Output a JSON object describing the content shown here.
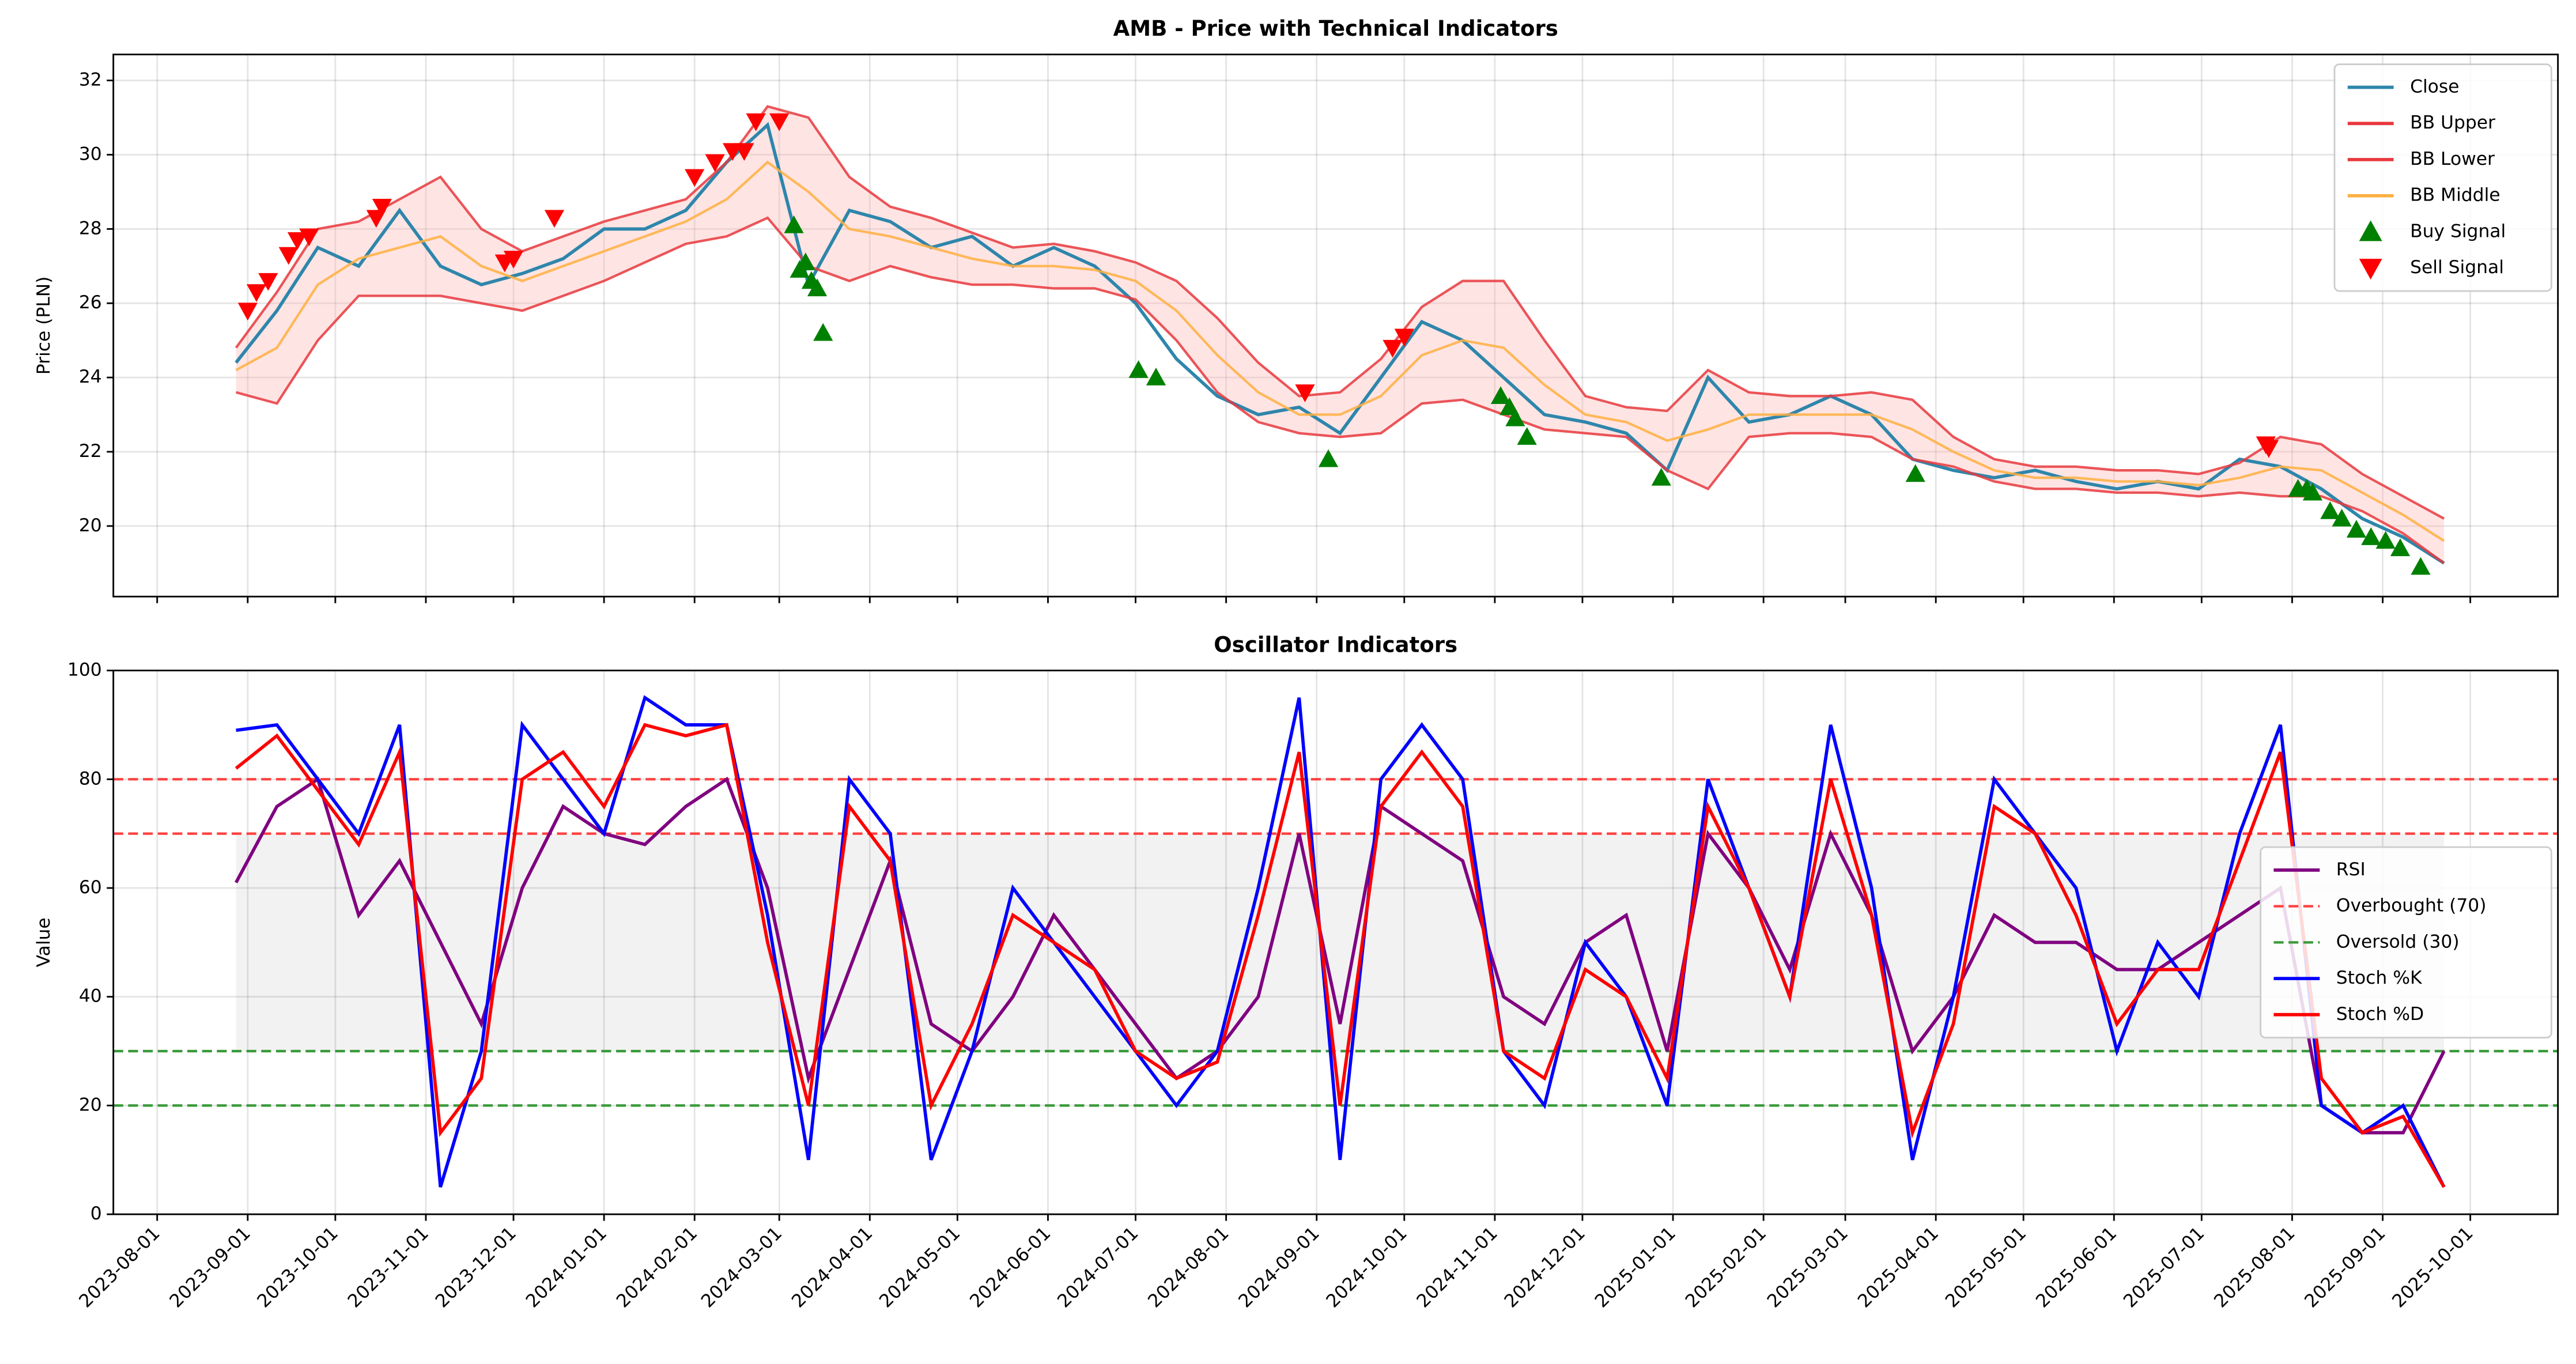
{
  "chart_data": [
    {
      "type": "line",
      "title": "AMB - Price with Technical Indicators",
      "ylabel": "Price (PLN)",
      "x": [
        "2023-08-28",
        "2023-09-11",
        "2023-09-25",
        "2023-10-09",
        "2023-10-23",
        "2023-11-06",
        "2023-11-20",
        "2023-12-04",
        "2023-12-18",
        "2024-01-01",
        "2024-01-15",
        "2024-01-29",
        "2024-02-12",
        "2024-02-26",
        "2024-03-11",
        "2024-03-25",
        "2024-04-08",
        "2024-04-22",
        "2024-05-06",
        "2024-05-20",
        "2024-06-03",
        "2024-06-17",
        "2024-07-01",
        "2024-07-15",
        "2024-07-29",
        "2024-08-12",
        "2024-08-26",
        "2024-09-09",
        "2024-09-23",
        "2024-10-07",
        "2024-10-21",
        "2024-11-04",
        "2024-11-18",
        "2024-12-02",
        "2024-12-16",
        "2024-12-30",
        "2025-01-13",
        "2025-01-27",
        "2025-02-10",
        "2025-02-24",
        "2025-03-10",
        "2025-03-24",
        "2025-04-07",
        "2025-04-21",
        "2025-05-05",
        "2025-05-19",
        "2025-06-02",
        "2025-06-16",
        "2025-06-30",
        "2025-07-14",
        "2025-07-28",
        "2025-08-11",
        "2025-08-25",
        "2025-09-08",
        "2025-09-22"
      ],
      "series": [
        {
          "name": "Close",
          "color": "#2e86ab",
          "width": 2,
          "values": [
            24.4,
            25.8,
            27.5,
            27.0,
            28.5,
            27.0,
            26.5,
            26.8,
            27.2,
            28.0,
            28.0,
            28.5,
            29.8,
            30.8,
            26.5,
            28.5,
            28.2,
            27.5,
            27.8,
            27.0,
            27.5,
            27.0,
            26.0,
            24.5,
            23.5,
            23.0,
            23.2,
            22.5,
            24.0,
            25.5,
            25.0,
            24.0,
            23.0,
            22.8,
            22.5,
            21.5,
            24.0,
            22.8,
            23.0,
            23.5,
            23.0,
            21.8,
            21.5,
            21.3,
            21.5,
            21.2,
            21.0,
            21.2,
            21.0,
            21.8,
            21.6,
            21.0,
            20.2,
            19.7,
            19.0
          ]
        },
        {
          "name": "BB Upper",
          "color": "#e8383d",
          "width": 1.5,
          "values": [
            24.8,
            26.3,
            28.0,
            28.2,
            28.8,
            29.4,
            28.0,
            27.4,
            27.8,
            28.2,
            28.5,
            28.8,
            29.8,
            31.3,
            31.0,
            29.4,
            28.6,
            28.3,
            27.9,
            27.5,
            27.6,
            27.4,
            27.1,
            26.6,
            25.6,
            24.4,
            23.5,
            23.6,
            24.5,
            25.9,
            26.6,
            26.6,
            25.0,
            23.5,
            23.2,
            23.1,
            24.2,
            23.6,
            23.5,
            23.5,
            23.6,
            23.4,
            22.4,
            21.8,
            21.6,
            21.6,
            21.5,
            21.5,
            21.4,
            21.7,
            22.4,
            22.2,
            21.4,
            20.8,
            20.2
          ]
        },
        {
          "name": "BB Lower",
          "color": "#e8383d",
          "width": 1.5,
          "values": [
            23.6,
            23.3,
            25.0,
            26.2,
            26.2,
            26.2,
            26.0,
            25.8,
            26.2,
            26.6,
            27.1,
            27.6,
            27.8,
            28.3,
            27.0,
            26.6,
            27.0,
            26.7,
            26.5,
            26.5,
            26.4,
            26.4,
            26.1,
            25.0,
            23.6,
            22.8,
            22.5,
            22.4,
            22.5,
            23.3,
            23.4,
            23.0,
            22.6,
            22.5,
            22.4,
            21.5,
            21.0,
            22.4,
            22.5,
            22.5,
            22.4,
            21.8,
            21.6,
            21.2,
            21.0,
            21.0,
            20.9,
            20.9,
            20.8,
            20.9,
            20.8,
            20.8,
            20.4,
            19.8,
            19.0
          ]
        },
        {
          "name": "BB Middle",
          "color": "#ffb040",
          "width": 1.5,
          "values": [
            24.2,
            24.8,
            26.5,
            27.2,
            27.5,
            27.8,
            27.0,
            26.6,
            27.0,
            27.4,
            27.8,
            28.2,
            28.8,
            29.8,
            29.0,
            28.0,
            27.8,
            27.5,
            27.2,
            27.0,
            27.0,
            26.9,
            26.6,
            25.8,
            24.6,
            23.6,
            23.0,
            23.0,
            23.5,
            24.6,
            25.0,
            24.8,
            23.8,
            23.0,
            22.8,
            22.3,
            22.6,
            23.0,
            23.0,
            23.0,
            23.0,
            22.6,
            22.0,
            21.5,
            21.3,
            21.3,
            21.2,
            21.2,
            21.1,
            21.3,
            21.6,
            21.5,
            20.9,
            20.3,
            19.6
          ]
        },
        {
          "name": "Buy Signal",
          "type": "scatter",
          "marker": "up",
          "color": "#008000",
          "x": [
            "2024-03-06",
            "2024-03-08",
            "2024-03-10",
            "2024-03-12",
            "2024-03-14",
            "2024-03-16",
            "2024-07-02",
            "2024-07-08",
            "2024-09-05",
            "2024-11-03",
            "2024-11-06",
            "2024-11-08",
            "2024-11-12",
            "2024-12-28",
            "2025-03-25",
            "2025-08-03",
            "2025-08-06",
            "2025-08-08",
            "2025-08-14",
            "2025-08-18",
            "2025-08-23",
            "2025-08-28",
            "2025-09-02",
            "2025-09-07",
            "2025-09-14"
          ],
          "values": [
            28.1,
            26.9,
            27.1,
            26.6,
            26.4,
            25.2,
            24.2,
            24.0,
            21.8,
            23.5,
            23.2,
            22.9,
            22.4,
            21.3,
            21.4,
            21.0,
            21.0,
            20.9,
            20.4,
            20.2,
            19.9,
            19.7,
            19.6,
            19.4,
            18.9
          ]
        },
        {
          "name": "Sell Signal",
          "type": "scatter",
          "marker": "down",
          "color": "#ff0000",
          "x": [
            "2023-09-01",
            "2023-09-04",
            "2023-09-08",
            "2023-09-15",
            "2023-09-18",
            "2023-09-22",
            "2023-10-15",
            "2023-10-17",
            "2023-11-28",
            "2023-12-01",
            "2023-12-15",
            "2024-02-01",
            "2024-02-08",
            "2024-02-14",
            "2024-02-18",
            "2024-02-22",
            "2024-03-01",
            "2024-08-28",
            "2024-09-27",
            "2024-10-01",
            "2025-07-23",
            "2025-07-24"
          ],
          "values": [
            25.8,
            26.3,
            26.6,
            27.3,
            27.7,
            27.8,
            28.3,
            28.6,
            27.1,
            27.2,
            28.3,
            29.4,
            29.8,
            30.1,
            30.1,
            30.9,
            30.9,
            23.6,
            24.8,
            25.1,
            22.2,
            22.1
          ]
        }
      ],
      "fill_between": {
        "series": [
          1,
          2
        ],
        "color": "#ffb3b3"
      },
      "xlim": [
        "2023-07-17",
        "2025-10-31"
      ],
      "xticks": [
        "2023-08-01",
        "2023-09-01",
        "2023-10-01",
        "2023-11-01",
        "2023-12-01",
        "2024-01-01",
        "2024-02-01",
        "2024-03-01",
        "2024-04-01",
        "2024-05-01",
        "2024-06-01",
        "2024-07-01",
        "2024-08-01",
        "2024-09-01",
        "2024-10-01",
        "2024-11-01",
        "2024-12-01",
        "2025-01-01",
        "2025-02-01",
        "2025-03-01",
        "2025-04-01",
        "2025-05-01",
        "2025-06-01",
        "2025-07-01",
        "2025-08-01",
        "2025-09-01",
        "2025-10-01"
      ],
      "xticklabels": false,
      "ylim": [
        18.1,
        32.7
      ],
      "yticks": [
        20,
        22,
        24,
        26,
        28,
        30,
        32
      ],
      "grid": true,
      "legend": "upper right"
    },
    {
      "type": "line",
      "title": "Oscillator Indicators",
      "ylabel": "Value",
      "x": [
        "2023-08-28",
        "2023-09-11",
        "2023-09-25",
        "2023-10-09",
        "2023-10-23",
        "2023-11-06",
        "2023-11-20",
        "2023-12-04",
        "2023-12-18",
        "2024-01-01",
        "2024-01-15",
        "2024-01-29",
        "2024-02-12",
        "2024-02-26",
        "2024-03-11",
        "2024-03-25",
        "2024-04-08",
        "2024-04-22",
        "2024-05-06",
        "2024-05-20",
        "2024-06-03",
        "2024-06-17",
        "2024-07-01",
        "2024-07-15",
        "2024-07-29",
        "2024-08-12",
        "2024-08-26",
        "2024-09-09",
        "2024-09-23",
        "2024-10-07",
        "2024-10-21",
        "2024-11-04",
        "2024-11-18",
        "2024-12-02",
        "2024-12-16",
        "2024-12-30",
        "2025-01-13",
        "2025-01-27",
        "2025-02-10",
        "2025-02-24",
        "2025-03-10",
        "2025-03-24",
        "2025-04-07",
        "2025-04-21",
        "2025-05-05",
        "2025-05-19",
        "2025-06-02",
        "2025-06-16",
        "2025-06-30",
        "2025-07-14",
        "2025-07-28",
        "2025-08-11",
        "2025-08-25",
        "2025-09-08",
        "2025-09-22"
      ],
      "series": [
        {
          "name": "RSI",
          "color": "#800080",
          "width": 2,
          "values": [
            61,
            75,
            80,
            55,
            65,
            50,
            35,
            60,
            75,
            70,
            68,
            75,
            80,
            60,
            25,
            45,
            65,
            35,
            30,
            40,
            55,
            45,
            35,
            25,
            30,
            40,
            70,
            35,
            75,
            70,
            65,
            40,
            35,
            50,
            55,
            30,
            70,
            60,
            45,
            70,
            55,
            30,
            40,
            55,
            50,
            50,
            45,
            45,
            50,
            55,
            60,
            20,
            15,
            15,
            30
          ]
        },
        {
          "name": "Stoch %K",
          "color": "#0000ff",
          "width": 2,
          "values": [
            89,
            90,
            80,
            70,
            90,
            5,
            30,
            90,
            80,
            70,
            95,
            90,
            90,
            55,
            10,
            80,
            70,
            10,
            30,
            60,
            50,
            40,
            30,
            20,
            30,
            60,
            95,
            10,
            80,
            90,
            80,
            30,
            20,
            50,
            40,
            20,
            80,
            60,
            40,
            90,
            60,
            10,
            40,
            80,
            70,
            60,
            30,
            50,
            40,
            70,
            90,
            20,
            15,
            20,
            5
          ]
        },
        {
          "name": "Stoch %D",
          "color": "#ff0000",
          "width": 2,
          "values": [
            82,
            88,
            78,
            68,
            85,
            15,
            25,
            80,
            85,
            75,
            90,
            88,
            90,
            50,
            20,
            75,
            65,
            20,
            35,
            55,
            50,
            45,
            30,
            25,
            28,
            55,
            85,
            20,
            75,
            85,
            75,
            30,
            25,
            45,
            40,
            25,
            75,
            60,
            40,
            80,
            55,
            15,
            35,
            75,
            70,
            55,
            35,
            45,
            45,
            65,
            85,
            25,
            15,
            18,
            5
          ]
        }
      ],
      "levels": [
        {
          "name": "Overbought (70)",
          "value": 70,
          "color": "#ff4040"
        },
        {
          "name": "Oversold (30)",
          "value": 30,
          "color": "#3a9a3a"
        },
        {
          "value": 80,
          "color": "#ff4040"
        },
        {
          "value": 20,
          "color": "#3a9a3a"
        }
      ],
      "shade_between": {
        "levels": [
          0,
          1
        ],
        "color": "#d9d9d9"
      },
      "xlim": [
        "2023-07-17",
        "2025-10-31"
      ],
      "xticks": [
        "2023-08-01",
        "2023-09-01",
        "2023-10-01",
        "2023-11-01",
        "2023-12-01",
        "2024-01-01",
        "2024-02-01",
        "2024-03-01",
        "2024-04-01",
        "2024-05-01",
        "2024-06-01",
        "2024-07-01",
        "2024-08-01",
        "2024-09-01",
        "2024-10-01",
        "2024-11-01",
        "2024-12-01",
        "2025-01-01",
        "2025-02-01",
        "2025-03-01",
        "2025-04-01",
        "2025-05-01",
        "2025-06-01",
        "2025-07-01",
        "2025-08-01",
        "2025-09-01",
        "2025-10-01"
      ],
      "xticklabels": true,
      "ylim": [
        0,
        100
      ],
      "yticks": [
        0,
        20,
        40,
        60,
        80,
        100
      ],
      "grid": true,
      "legend": "center right"
    }
  ]
}
